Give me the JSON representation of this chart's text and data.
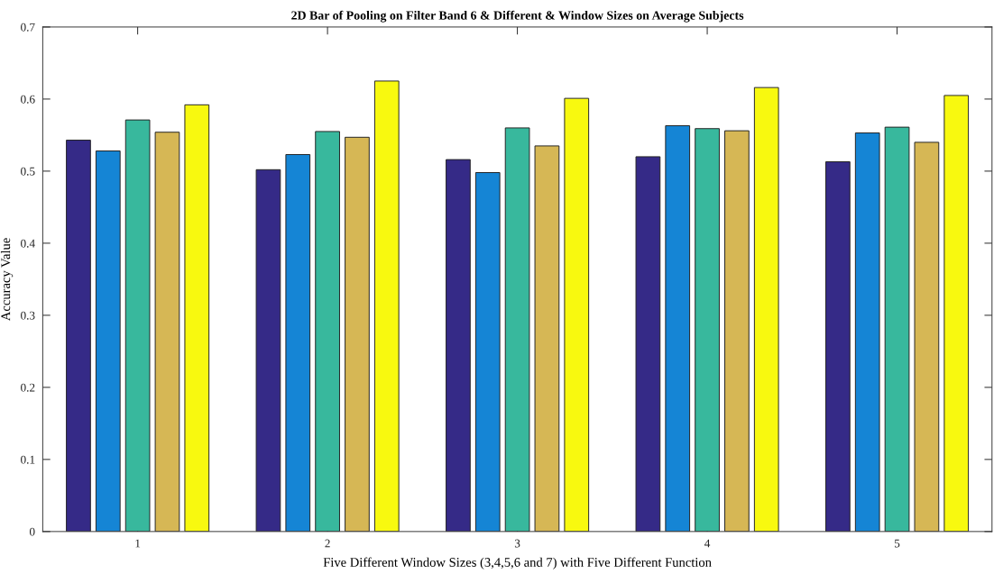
{
  "chart_data": {
    "type": "bar",
    "title": "2D Bar of Pooling on Filter Band 6 & Different & Window Sizes on Average Subjects",
    "xlabel": "Five Different Window Sizes (3,4,5,6 and 7) with Five Different Function",
    "ylabel": "Accuracy Value",
    "categories": [
      "1",
      "2",
      "3",
      "4",
      "5"
    ],
    "series": [
      {
        "color": "#352a87",
        "values": [
          0.543,
          0.502,
          0.516,
          0.52,
          0.513
        ]
      },
      {
        "color": "#1585d5",
        "values": [
          0.528,
          0.523,
          0.498,
          0.563,
          0.553
        ]
      },
      {
        "color": "#38b89d",
        "values": [
          0.571,
          0.555,
          0.56,
          0.559,
          0.561
        ]
      },
      {
        "color": "#d6b755",
        "values": [
          0.554,
          0.547,
          0.535,
          0.556,
          0.54
        ]
      },
      {
        "color": "#f8f90f",
        "values": [
          0.592,
          0.625,
          0.601,
          0.616,
          0.605
        ]
      }
    ],
    "ylim": [
      0,
      0.7
    ],
    "yticks": [
      0,
      0.1,
      0.2,
      0.3,
      0.4,
      0.5,
      0.6,
      0.7
    ]
  }
}
